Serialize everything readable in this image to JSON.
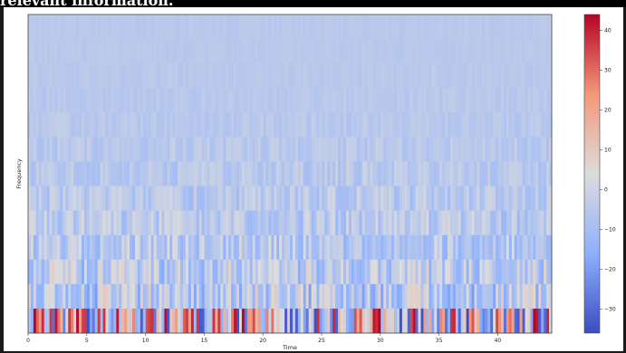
{
  "page": {
    "cutoff_text": "relevant information."
  },
  "chart_data": {
    "type": "heatmap",
    "title": "",
    "xlabel": "Time",
    "ylabel": "Frequency",
    "xlim": [
      0,
      44.6
    ],
    "x_ticks": [
      0,
      5,
      10,
      15,
      20,
      25,
      30,
      35,
      40
    ],
    "y_ticks": [],
    "n_rows": 13,
    "n_cols": 196,
    "colormap": "coolwarm",
    "colorbar": {
      "vmin": -36,
      "vmax": 44,
      "ticks": [
        -30,
        -20,
        -10,
        0,
        10,
        20,
        30,
        40
      ],
      "placement": "right"
    },
    "value_description": "MFCC-style coefficients; bottom row strongly varying between about -36 and 44, upper rows near -5 with small fluctuations",
    "colors": {
      "low": "#3b4cc0",
      "mid": "#dddcdc",
      "high": "#b40426"
    }
  }
}
